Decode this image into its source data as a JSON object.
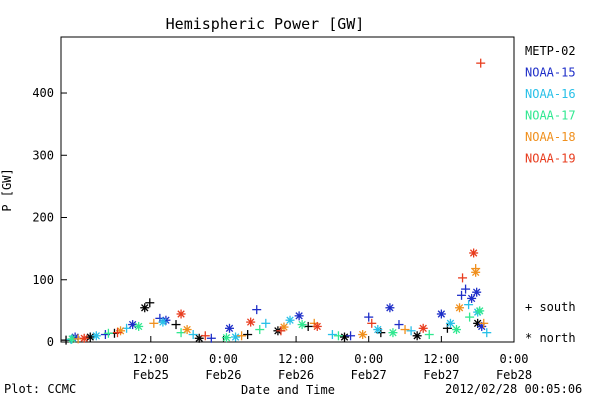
{
  "footer": {
    "plot_label": "Plot: CCMC",
    "timestamp": "2012/02/28 00:05:06"
  },
  "chart_data": {
    "type": "scatter",
    "title": "Hemispheric Power [GW]",
    "xlabel": "Date and Time",
    "ylabel": "P [GW]",
    "ylim": [
      0,
      490
    ],
    "yticks": [
      0,
      100,
      200,
      300,
      400
    ],
    "xlim": [
      "2012-02-24T21:10",
      "2012-02-28T00:00"
    ],
    "xticks": [
      {
        "x": "2012-02-25T12:00",
        "time": "12:00",
        "date": "Feb25"
      },
      {
        "x": "2012-02-26T00:00",
        "time": "0:00",
        "date": "Feb26"
      },
      {
        "x": "2012-02-26T12:00",
        "time": "12:00",
        "date": "Feb26"
      },
      {
        "x": "2012-02-27T00:00",
        "time": "0:00",
        "date": "Feb27"
      },
      {
        "x": "2012-02-27T12:00",
        "time": "12:00",
        "date": "Feb27"
      },
      {
        "x": "2012-02-28T00:00",
        "time": "0:00",
        "date": "Feb28"
      }
    ],
    "grid": false,
    "legend_placement": "right",
    "marker_legend": {
      "south": "+ south",
      "north": "* north"
    },
    "series": [
      {
        "name": "METP-02",
        "color": "#000000",
        "points": [
          {
            "x": "2012-02-24T22:00",
            "y": 3,
            "h": "south"
          },
          {
            "x": "2012-02-25T02:00",
            "y": 8,
            "h": "north"
          },
          {
            "x": "2012-02-25T06:00",
            "y": 14,
            "h": "south"
          },
          {
            "x": "2012-02-25T11:00",
            "y": 55,
            "h": "north"
          },
          {
            "x": "2012-02-25T11:50",
            "y": 63,
            "h": "south"
          },
          {
            "x": "2012-02-25T16:10",
            "y": 28,
            "h": "south"
          },
          {
            "x": "2012-02-25T20:00",
            "y": 6,
            "h": "north"
          },
          {
            "x": "2012-02-26T04:00",
            "y": 12,
            "h": "south"
          },
          {
            "x": "2012-02-26T09:00",
            "y": 18,
            "h": "north"
          },
          {
            "x": "2012-02-26T14:00",
            "y": 25,
            "h": "south"
          },
          {
            "x": "2012-02-26T20:00",
            "y": 8,
            "h": "north"
          },
          {
            "x": "2012-02-27T02:00",
            "y": 15,
            "h": "south"
          },
          {
            "x": "2012-02-27T08:00",
            "y": 10,
            "h": "north"
          },
          {
            "x": "2012-02-27T13:00",
            "y": 22,
            "h": "south"
          },
          {
            "x": "2012-02-27T18:00",
            "y": 30,
            "h": "north"
          }
        ]
      },
      {
        "name": "NOAA-15",
        "color": "#1e2ec8",
        "points": [
          {
            "x": "2012-02-24T23:30",
            "y": 8,
            "h": "north"
          },
          {
            "x": "2012-02-25T04:30",
            "y": 12,
            "h": "south"
          },
          {
            "x": "2012-02-25T09:00",
            "y": 28,
            "h": "north"
          },
          {
            "x": "2012-02-25T13:30",
            "y": 38,
            "h": "south"
          },
          {
            "x": "2012-02-25T14:30",
            "y": 35,
            "h": "north"
          },
          {
            "x": "2012-02-25T22:00",
            "y": 6,
            "h": "south"
          },
          {
            "x": "2012-02-26T01:00",
            "y": 22,
            "h": "north"
          },
          {
            "x": "2012-02-26T05:30",
            "y": 52,
            "h": "south"
          },
          {
            "x": "2012-02-26T12:30",
            "y": 42,
            "h": "north"
          },
          {
            "x": "2012-02-26T21:00",
            "y": 10,
            "h": "south"
          },
          {
            "x": "2012-02-27T00:00",
            "y": 40,
            "h": "south"
          },
          {
            "x": "2012-02-27T03:30",
            "y": 55,
            "h": "north"
          },
          {
            "x": "2012-02-27T05:00",
            "y": 28,
            "h": "south"
          },
          {
            "x": "2012-02-27T12:00",
            "y": 45,
            "h": "north"
          },
          {
            "x": "2012-02-27T15:20",
            "y": 75,
            "h": "south"
          },
          {
            "x": "2012-02-27T16:00",
            "y": 85,
            "h": "south"
          },
          {
            "x": "2012-02-27T17:00",
            "y": 70,
            "h": "north"
          },
          {
            "x": "2012-02-27T17:50",
            "y": 80,
            "h": "north"
          },
          {
            "x": "2012-02-27T18:40",
            "y": 25,
            "h": "north"
          }
        ]
      },
      {
        "name": "NOAA-16",
        "color": "#28c0e8",
        "points": [
          {
            "x": "2012-02-24T22:50",
            "y": 4,
            "h": "south"
          },
          {
            "x": "2012-02-25T03:00",
            "y": 10,
            "h": "north"
          },
          {
            "x": "2012-02-25T08:00",
            "y": 22,
            "h": "south"
          },
          {
            "x": "2012-02-25T14:00",
            "y": 32,
            "h": "north"
          },
          {
            "x": "2012-02-25T19:00",
            "y": 12,
            "h": "south"
          },
          {
            "x": "2012-02-26T02:00",
            "y": 8,
            "h": "north"
          },
          {
            "x": "2012-02-26T07:00",
            "y": 30,
            "h": "south"
          },
          {
            "x": "2012-02-26T11:00",
            "y": 35,
            "h": "north"
          },
          {
            "x": "2012-02-26T18:00",
            "y": 12,
            "h": "south"
          },
          {
            "x": "2012-02-27T01:30",
            "y": 20,
            "h": "north"
          },
          {
            "x": "2012-02-27T07:00",
            "y": 18,
            "h": "south"
          },
          {
            "x": "2012-02-27T13:30",
            "y": 30,
            "h": "north"
          },
          {
            "x": "2012-02-27T16:30",
            "y": 60,
            "h": "south"
          },
          {
            "x": "2012-02-27T18:00",
            "y": 48,
            "h": "north"
          },
          {
            "x": "2012-02-27T19:30",
            "y": 15,
            "h": "south"
          }
        ]
      },
      {
        "name": "NOAA-17",
        "color": "#30e890",
        "points": [
          {
            "x": "2012-02-24T23:00",
            "y": 5,
            "h": "north"
          },
          {
            "x": "2012-02-25T05:00",
            "y": 14,
            "h": "south"
          },
          {
            "x": "2012-02-25T10:00",
            "y": 25,
            "h": "north"
          },
          {
            "x": "2012-02-25T17:00",
            "y": 15,
            "h": "south"
          },
          {
            "x": "2012-02-26T00:30",
            "y": 7,
            "h": "north"
          },
          {
            "x": "2012-02-26T06:00",
            "y": 20,
            "h": "south"
          },
          {
            "x": "2012-02-26T13:00",
            "y": 28,
            "h": "north"
          },
          {
            "x": "2012-02-26T19:00",
            "y": 10,
            "h": "south"
          },
          {
            "x": "2012-02-27T04:00",
            "y": 15,
            "h": "north"
          },
          {
            "x": "2012-02-27T10:00",
            "y": 12,
            "h": "south"
          },
          {
            "x": "2012-02-27T14:30",
            "y": 20,
            "h": "north"
          },
          {
            "x": "2012-02-27T16:40",
            "y": 40,
            "h": "south"
          },
          {
            "x": "2012-02-27T18:20",
            "y": 50,
            "h": "north"
          }
        ]
      },
      {
        "name": "NOAA-18",
        "color": "#f0901e",
        "points": [
          {
            "x": "2012-02-25T00:00",
            "y": 5,
            "h": "south"
          },
          {
            "x": "2012-02-25T07:00",
            "y": 18,
            "h": "north"
          },
          {
            "x": "2012-02-25T12:30",
            "y": 30,
            "h": "south"
          },
          {
            "x": "2012-02-25T18:00",
            "y": 20,
            "h": "north"
          },
          {
            "x": "2012-02-26T03:00",
            "y": 10,
            "h": "south"
          },
          {
            "x": "2012-02-26T10:00",
            "y": 24,
            "h": "north"
          },
          {
            "x": "2012-02-26T15:00",
            "y": 30,
            "h": "south"
          },
          {
            "x": "2012-02-26T23:00",
            "y": 12,
            "h": "north"
          },
          {
            "x": "2012-02-27T06:00",
            "y": 20,
            "h": "south"
          },
          {
            "x": "2012-02-27T15:00",
            "y": 55,
            "h": "north"
          },
          {
            "x": "2012-02-27T17:40",
            "y": 112,
            "h": "north"
          },
          {
            "x": "2012-02-27T17:40",
            "y": 118,
            "h": "south"
          },
          {
            "x": "2012-02-27T19:00",
            "y": 30,
            "h": "south"
          }
        ]
      },
      {
        "name": "NOAA-19",
        "color": "#e83c1e",
        "points": [
          {
            "x": "2012-02-25T01:00",
            "y": 6,
            "h": "north"
          },
          {
            "x": "2012-02-25T06:30",
            "y": 15,
            "h": "south"
          },
          {
            "x": "2012-02-25T17:00",
            "y": 45,
            "h": "north"
          },
          {
            "x": "2012-02-25T21:00",
            "y": 10,
            "h": "south"
          },
          {
            "x": "2012-02-26T04:30",
            "y": 32,
            "h": "north"
          },
          {
            "x": "2012-02-26T09:30",
            "y": 18,
            "h": "south"
          },
          {
            "x": "2012-02-26T15:30",
            "y": 25,
            "h": "north"
          },
          {
            "x": "2012-02-27T00:30",
            "y": 30,
            "h": "south"
          },
          {
            "x": "2012-02-27T09:00",
            "y": 22,
            "h": "north"
          },
          {
            "x": "2012-02-27T15:30",
            "y": 103,
            "h": "south"
          },
          {
            "x": "2012-02-27T17:20",
            "y": 143,
            "h": "north"
          },
          {
            "x": "2012-02-27T18:30",
            "y": 448,
            "h": "south"
          }
        ]
      }
    ]
  }
}
